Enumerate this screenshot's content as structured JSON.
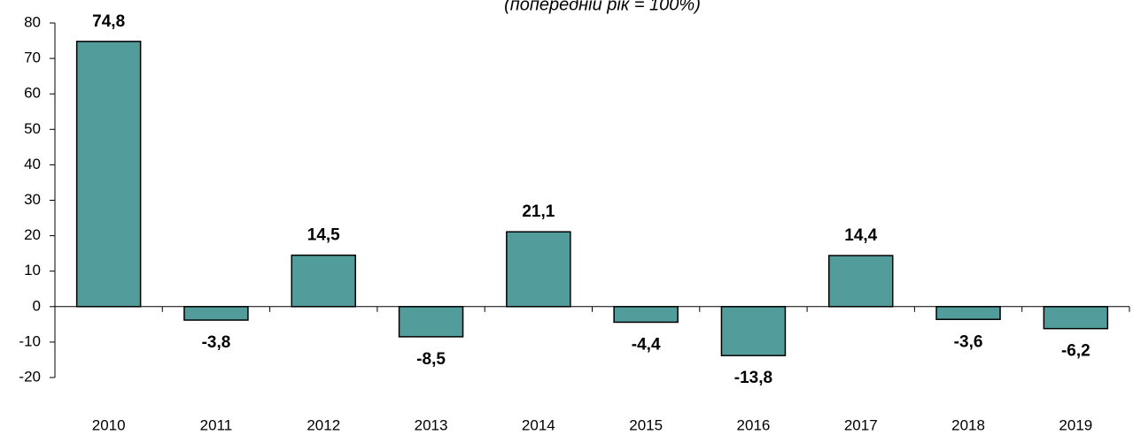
{
  "chart_data": {
    "type": "bar",
    "subtitle": "(попередній рік = 100%)",
    "categories": [
      "2010",
      "2011",
      "2012",
      "2013",
      "2014",
      "2015",
      "2016",
      "2017",
      "2018",
      "2019"
    ],
    "values": [
      74.8,
      -3.8,
      14.5,
      -8.5,
      21.1,
      -4.4,
      -13.8,
      14.4,
      -3.6,
      -6.2
    ],
    "value_labels": [
      "74,8",
      "-3,8",
      "14,5",
      "-8,5",
      "21,1",
      "-4,4",
      "-13,8",
      "14,4",
      "-3,6",
      "-6,2"
    ],
    "color": "#529c9c",
    "ylim": [
      -20,
      80
    ],
    "yticks": [
      -20,
      -10,
      0,
      10,
      20,
      30,
      40,
      50,
      60,
      70,
      80
    ],
    "grid": false
  }
}
